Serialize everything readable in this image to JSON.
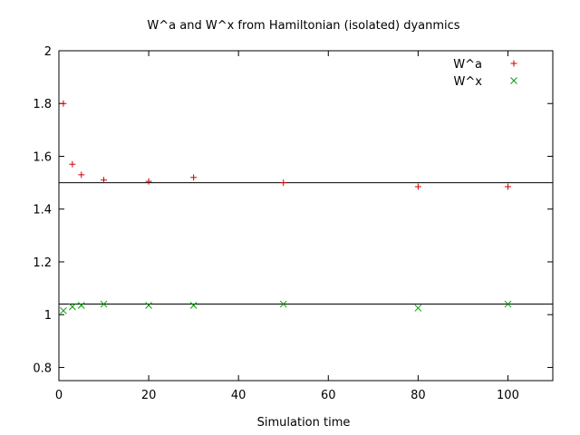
{
  "chart_data": {
    "type": "scatter",
    "title": "W^a and W^x from Hamiltonian (isolated) dyanmics",
    "xlabel": "Simulation time",
    "ylabel": "",
    "xlim": [
      0,
      110
    ],
    "ylim": [
      0.75,
      2.0
    ],
    "xticks": [
      "0",
      "20",
      "40",
      "60",
      "80",
      "100"
    ],
    "yticks": [
      "0.8",
      "1",
      "1.2",
      "1.4",
      "1.6",
      "1.8",
      "2"
    ],
    "grid": false,
    "legend": "top-right",
    "reference_lines": [
      1.5,
      1.04
    ],
    "series": [
      {
        "name": "W^a",
        "marker": "plus",
        "color": "#d00000",
        "points": [
          [
            1,
            1.8
          ],
          [
            3,
            1.57
          ],
          [
            5,
            1.53
          ],
          [
            10,
            1.51
          ],
          [
            20,
            1.505
          ],
          [
            30,
            1.52
          ],
          [
            50,
            1.5
          ],
          [
            80,
            1.485
          ],
          [
            100,
            1.485
          ]
        ]
      },
      {
        "name": "W^x",
        "marker": "cross",
        "color": "#00a000",
        "points": [
          [
            1,
            1.015
          ],
          [
            3,
            1.03
          ],
          [
            5,
            1.035
          ],
          [
            10,
            1.04
          ],
          [
            20,
            1.035
          ],
          [
            30,
            1.035
          ],
          [
            50,
            1.04
          ],
          [
            80,
            1.025
          ],
          [
            100,
            1.04
          ]
        ]
      }
    ]
  }
}
